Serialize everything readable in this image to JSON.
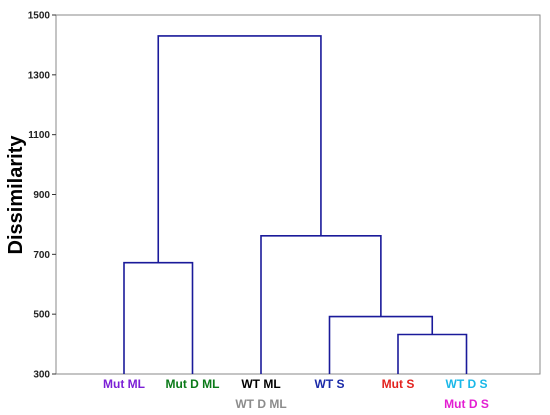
{
  "chart_data": {
    "type": "dendrogram",
    "title": "",
    "xlabel": "",
    "ylabel": "Dissimilarity",
    "ylim": [
      300,
      1500
    ],
    "yticks": [
      300,
      500,
      700,
      900,
      1100,
      1300,
      1500
    ],
    "grid": false,
    "link_color": "#1a1a9a",
    "leaves": [
      {
        "label": "Mut ML",
        "color": "#7b1fd6"
      },
      {
        "label": "Mut D ML",
        "color": "#0a7a18"
      },
      {
        "label": "WT ML",
        "color": "#000000",
        "label2": "WT D ML",
        "color2": "#8c8c8c"
      },
      {
        "label": "WT S",
        "color": "#1a2aa8"
      },
      {
        "label": "Mut S",
        "color": "#e3221e"
      },
      {
        "label": "WT D S",
        "color": "#1ab8e8",
        "label2": "Mut D S",
        "color2": "#e31ed2"
      }
    ],
    "merges": [
      {
        "left": 4,
        "right": 5,
        "height": 432
      },
      {
        "left": 3,
        "right": "m0",
        "height": 492
      },
      {
        "left": 2,
        "right": "m1",
        "height": 762
      },
      {
        "left": 0,
        "right": 1,
        "height": 672
      },
      {
        "left": "m3",
        "right": "m2",
        "height": 1430
      }
    ]
  }
}
